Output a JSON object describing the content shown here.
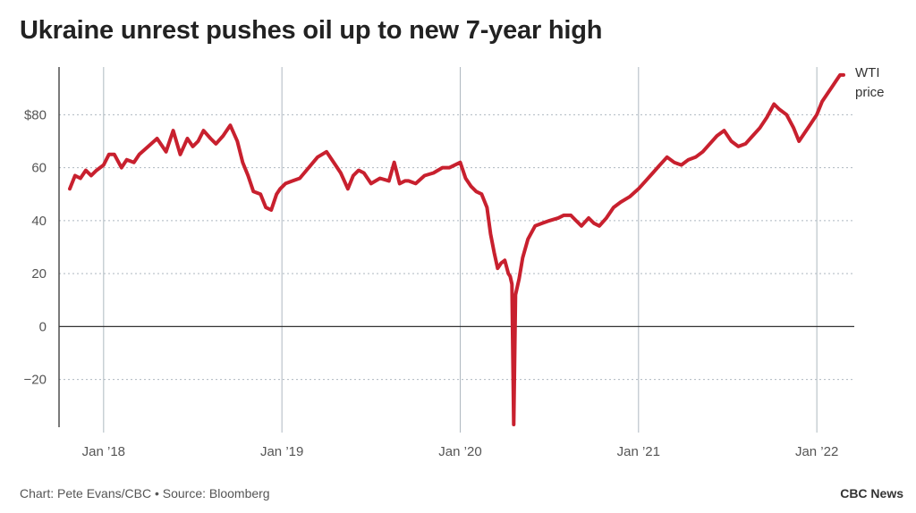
{
  "title": "Ukraine unrest pushes oil up to new 7-year high",
  "footer": {
    "credit": "Chart: Pete Evans/CBC • Source: Bloomberg",
    "brand": "CBC News"
  },
  "colors": {
    "line": "#c8202e",
    "grid": "#aeb8c0",
    "axis": "#333333"
  },
  "chart_data": {
    "type": "line",
    "title": "Ukraine unrest pushes oil up to new 7-year high",
    "xlabel": "",
    "ylabel": "",
    "x_ticks": [
      {
        "label": "Jan ’18",
        "value": 2018.0
      },
      {
        "label": "Jan ’19",
        "value": 2019.0
      },
      {
        "label": "Jan ’20",
        "value": 2020.0
      },
      {
        "label": "Jan ’21",
        "value": 2021.0
      },
      {
        "label": "Jan ’22",
        "value": 2022.0
      }
    ],
    "y_ticks": [
      {
        "label": "$80",
        "value": 80
      },
      {
        "label": "60",
        "value": 60
      },
      {
        "label": "40",
        "value": 40
      },
      {
        "label": "20",
        "value": 20
      },
      {
        "label": "0",
        "value": 0
      },
      {
        "label": "−20",
        "value": -20
      }
    ],
    "xlim": [
      2017.75,
      2022.21
    ],
    "ylim": [
      -38,
      98
    ],
    "grid": true,
    "series": [
      {
        "name": "WTI price",
        "x": [
          2017.81,
          2017.84,
          2017.87,
          2017.9,
          2017.93,
          2017.96,
          2018.0,
          2018.03,
          2018.06,
          2018.1,
          2018.13,
          2018.17,
          2018.2,
          2018.25,
          2018.3,
          2018.35,
          2018.39,
          2018.43,
          2018.47,
          2018.5,
          2018.53,
          2018.56,
          2018.6,
          2018.63,
          2018.67,
          2018.71,
          2018.75,
          2018.78,
          2018.81,
          2018.84,
          2018.88,
          2018.91,
          2018.94,
          2018.97,
          2018.99,
          2019.02,
          2019.06,
          2019.1,
          2019.15,
          2019.2,
          2019.25,
          2019.3,
          2019.33,
          2019.37,
          2019.4,
          2019.43,
          2019.46,
          2019.5,
          2019.55,
          2019.6,
          2019.63,
          2019.66,
          2019.69,
          2019.71,
          2019.75,
          2019.8,
          2019.85,
          2019.9,
          2019.94,
          2020.0,
          2020.03,
          2020.06,
          2020.09,
          2020.12,
          2020.15,
          2020.17,
          2020.19,
          2020.21,
          2020.23,
          2020.25,
          2020.27,
          2020.28,
          2020.29,
          2020.3,
          2020.31,
          2020.33,
          2020.35,
          2020.38,
          2020.42,
          2020.46,
          2020.5,
          2020.55,
          2020.58,
          2020.62,
          2020.65,
          2020.68,
          2020.72,
          2020.75,
          2020.78,
          2020.82,
          2020.86,
          2020.9,
          2020.95,
          2021.0,
          2021.04,
          2021.08,
          2021.12,
          2021.16,
          2021.2,
          2021.24,
          2021.28,
          2021.32,
          2021.36,
          2021.4,
          2021.44,
          2021.48,
          2021.52,
          2021.56,
          2021.6,
          2021.64,
          2021.68,
          2021.72,
          2021.76,
          2021.79,
          2021.83,
          2021.87,
          2021.9,
          2021.93,
          2021.96,
          2022.0,
          2022.03,
          2022.06,
          2022.09,
          2022.11,
          2022.13,
          2022.15
        ],
        "values": [
          52,
          57,
          56,
          59,
          57,
          59,
          61,
          65,
          65,
          60,
          63,
          62,
          65,
          68,
          71,
          66,
          74,
          65,
          71,
          68,
          70,
          74,
          71,
          69,
          72,
          76,
          70,
          62,
          57,
          51,
          50,
          45,
          44,
          50,
          52,
          54,
          55,
          56,
          60,
          64,
          66,
          61,
          58,
          52,
          57,
          59,
          58,
          54,
          56,
          55,
          62,
          54,
          55,
          55,
          54,
          57,
          58,
          60,
          60,
          62,
          56,
          53,
          51,
          50,
          45,
          35,
          28,
          22,
          24,
          25,
          20,
          19,
          16,
          -37,
          12,
          18,
          26,
          33,
          38,
          39,
          40,
          41,
          42,
          42,
          40,
          38,
          41,
          39,
          38,
          41,
          45,
          47,
          49,
          52,
          55,
          58,
          61,
          64,
          62,
          61,
          63,
          64,
          66,
          69,
          72,
          74,
          70,
          68,
          69,
          72,
          75,
          79,
          84,
          82,
          80,
          75,
          70,
          73,
          76,
          80,
          85,
          88,
          91,
          93,
          95,
          95
        ]
      }
    ]
  }
}
